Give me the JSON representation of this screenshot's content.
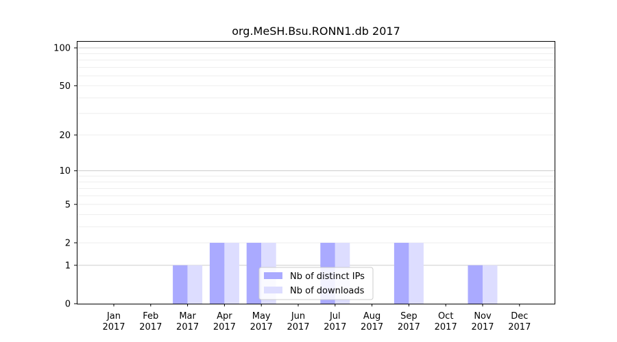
{
  "chart_data": {
    "type": "bar",
    "title": "org.MeSH.Bsu.RONN1.db 2017",
    "xlabel": "",
    "ylabel": "",
    "categories": [
      "Jan\n2017",
      "Feb\n2017",
      "Mar\n2017",
      "Apr\n2017",
      "May\n2017",
      "Jun\n2017",
      "Jul\n2017",
      "Aug\n2017",
      "Sep\n2017",
      "Oct\n2017",
      "Nov\n2017",
      "Dec\n2017"
    ],
    "series": [
      {
        "name": "Nb of distinct IPs",
        "color": "#aaaaff",
        "values": [
          0,
          0,
          1,
          2,
          2,
          0,
          2,
          0,
          2,
          0,
          1,
          0
        ]
      },
      {
        "name": "Nb of downloads",
        "color": "#ddddff",
        "values": [
          0,
          0,
          1,
          2,
          2,
          0,
          2,
          0,
          2,
          0,
          1,
          0
        ]
      }
    ],
    "yscale": "log1p",
    "ylim": [
      0,
      120
    ],
    "yticks": [
      0,
      1,
      2,
      5,
      10,
      20,
      50,
      100
    ],
    "ytick_labels": [
      "0",
      "1",
      "2",
      "5",
      "10",
      "20",
      "50",
      "100"
    ],
    "grid": true,
    "legend_position": "lower-center"
  }
}
